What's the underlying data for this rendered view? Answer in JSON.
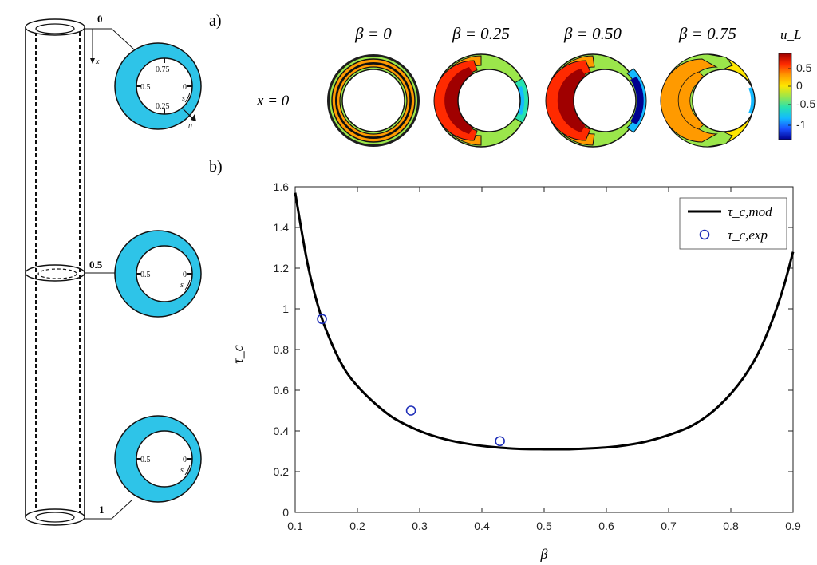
{
  "panel_a": {
    "label": "a)",
    "row_label": "x = 0",
    "columns": [
      {
        "title": "β = 0"
      },
      {
        "title": "β = 0.25"
      },
      {
        "title": "β = 0.50"
      },
      {
        "title": "β = 0.75"
      }
    ],
    "colorbar": {
      "label": "u_L",
      "ticks": [
        "0.5",
        "0",
        "-0.5",
        "-1"
      ],
      "colors": [
        "#a00000",
        "#ff2a00",
        "#ff9a00",
        "#ffe600",
        "#9be64b",
        "#27e2b0",
        "#13b9ff",
        "#1a4fff",
        "#00008f"
      ]
    }
  },
  "schematic": {
    "cross_sections": [
      {
        "position": "0",
        "labels": [
          "0.75",
          "0.5",
          "0",
          "0.25",
          "s",
          "η"
        ]
      },
      {
        "position": "0.5",
        "labels": [
          "0.5",
          "0",
          "s"
        ]
      },
      {
        "position": "1",
        "labels": [
          "0.5",
          "0",
          "s"
        ]
      }
    ],
    "axis_label": "x",
    "annulus_color": "#2ec4e8"
  },
  "panel_b": {
    "label": "b)"
  },
  "chart_data": {
    "type": "line",
    "xlabel": "β",
    "ylabel": "τ_c",
    "xlim": [
      0.1,
      0.9
    ],
    "ylim": [
      0,
      1.6
    ],
    "xticks": [
      "0.1",
      "0.2",
      "0.3",
      "0.4",
      "0.5",
      "0.6",
      "0.7",
      "0.8",
      "0.9"
    ],
    "yticks": [
      "0",
      "0.2",
      "0.4",
      "0.6",
      "0.8",
      "1",
      "1.2",
      "1.4",
      "1.6"
    ],
    "legend_position": "top-right",
    "series": [
      {
        "name": "τ_c,mod",
        "kind": "line",
        "color": "#000000",
        "x": [
          0.1,
          0.12,
          0.14,
          0.16,
          0.18,
          0.2,
          0.23,
          0.26,
          0.3,
          0.34,
          0.38,
          0.42,
          0.46,
          0.5,
          0.54,
          0.58,
          0.62,
          0.66,
          0.7,
          0.74,
          0.78,
          0.82,
          0.85,
          0.88,
          0.9
        ],
        "y": [
          1.57,
          1.22,
          0.98,
          0.82,
          0.7,
          0.62,
          0.53,
          0.46,
          0.4,
          0.36,
          0.335,
          0.32,
          0.312,
          0.31,
          0.31,
          0.315,
          0.325,
          0.345,
          0.38,
          0.43,
          0.52,
          0.66,
          0.82,
          1.06,
          1.28
        ]
      },
      {
        "name": "τ_c,exp",
        "kind": "marker",
        "color": "#1f2fb8",
        "x": [
          0.143,
          0.286,
          0.429
        ],
        "y": [
          0.95,
          0.5,
          0.35
        ]
      }
    ]
  }
}
